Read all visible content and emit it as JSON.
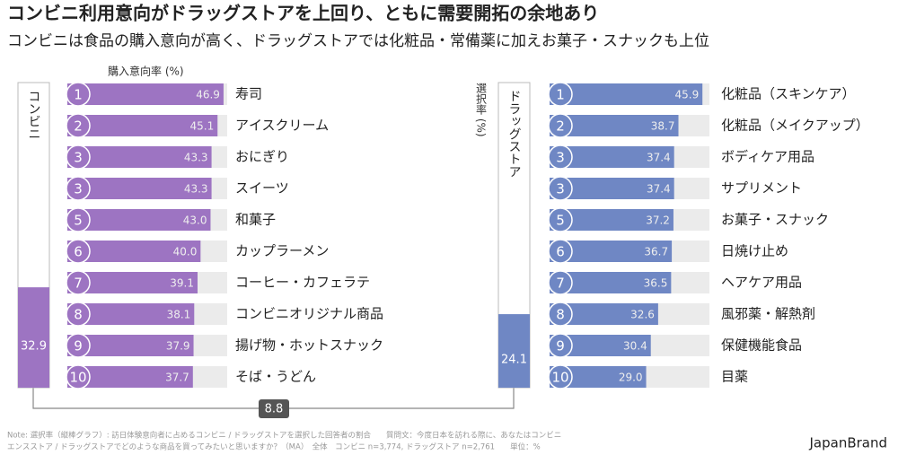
{
  "title": "コンビニ利用意向がドラッグストアを上回り、ともに需要開拓の余地あり",
  "subtitle": "コンビニは食品の購入意向が高く、ドラッグストアでは化粧品・常備薬に加えお菓子・スナックも上位",
  "footnote": [
    "Note: 選択率（縦棒グラフ）: 訪日体験意向者に占めるコンビニ / ドラッグストアを選択した回答者の割合　　質問文：今度日本を訪れる際に、あなたはコンビニ",
    "エンスストア / ドラッグストアでどのような商品を買ってみたいと思いますか？（MA）　全体　コンビニ n=3,774, ドラッグストア n=2,761　　単位：%"
  ],
  "brand": "JapanBrand",
  "chart_data": {
    "type": "bar",
    "x_label": "購入意向率 (%)",
    "y_label": "選択率 (%)",
    "xlim": [
      0,
      48
    ],
    "ylim": [
      0,
      100
    ],
    "difference": 8.8,
    "panels": [
      {
        "name": "コンビニ",
        "color": "#9d74c2",
        "selection_rate": 32.9,
        "ranks": [
          1,
          2,
          3,
          3,
          5,
          6,
          7,
          8,
          9,
          10
        ],
        "categories": [
          "寿司",
          "アイスクリーム",
          "おにぎり",
          "スイーツ",
          "和菓子",
          "カップラーメン",
          "コーヒー・カフェラテ",
          "コンビニオリジナル商品",
          "揚げ物・ホットスナック",
          "そば・うどん"
        ],
        "values": [
          46.9,
          45.1,
          43.3,
          43.3,
          43.0,
          40.0,
          39.1,
          38.1,
          37.9,
          37.7
        ],
        "value_labels": [
          "46.9",
          "45.1",
          "43.3",
          "43.3",
          "43.0",
          "40.0",
          "39.1",
          "38.1",
          "37.9",
          "37.7"
        ]
      },
      {
        "name": "ドラッグストア",
        "color": "#6f87c4",
        "selection_rate": 24.1,
        "ranks": [
          1,
          2,
          3,
          3,
          5,
          6,
          7,
          8,
          9,
          10
        ],
        "categories": [
          "化粧品（スキンケア）",
          "化粧品（メイクアップ）",
          "ボディケア用品",
          "サプリメント",
          "お菓子・スナック",
          "日焼け止め",
          "ヘアケア用品",
          "風邪薬・解熱剤",
          "保健機能食品",
          "目薬"
        ],
        "values": [
          45.9,
          38.7,
          37.4,
          37.4,
          37.2,
          36.7,
          36.5,
          32.6,
          30.4,
          29.0
        ],
        "value_labels": [
          "45.9",
          "38.7",
          "37.4",
          "37.4",
          "37.2",
          "36.7",
          "36.5",
          "32.6",
          "30.4",
          "29.0"
        ]
      }
    ]
  }
}
